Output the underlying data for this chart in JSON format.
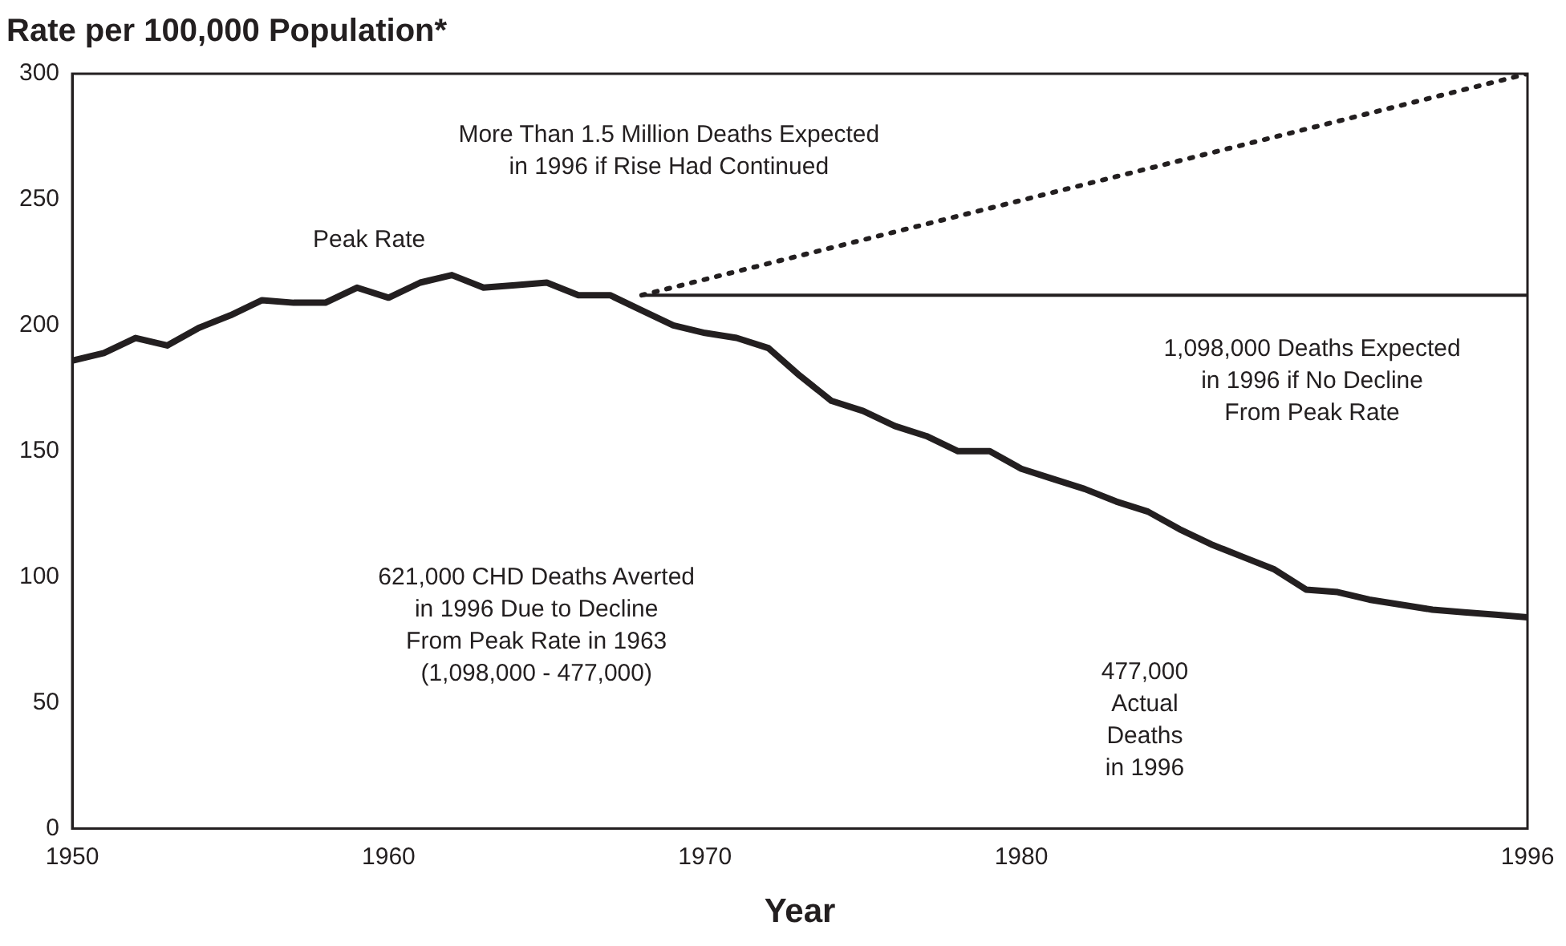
{
  "chart_data": {
    "type": "line",
    "title": "Rate per 100,000 Population*",
    "xlabel": "Year",
    "xlim": [
      1950,
      1996
    ],
    "xticks": [
      1950,
      1960,
      1970,
      1980,
      1996
    ],
    "ylim": [
      0,
      300
    ],
    "yticks": [
      0,
      50,
      100,
      150,
      200,
      250,
      300
    ],
    "grid": false,
    "legend": false,
    "marker": "none",
    "series": [
      {
        "color": "#231f20",
        "line_style": "solid",
        "x": [
          1950,
          1951,
          1952,
          1953,
          1954,
          1955,
          1956,
          1957,
          1958,
          1959,
          1960,
          1961,
          1962,
          1963,
          1964,
          1965,
          1966,
          1967,
          1968,
          1969,
          1970,
          1971,
          1972,
          1973,
          1974,
          1975,
          1976,
          1977,
          1978,
          1979,
          1980,
          1981,
          1982,
          1983,
          1984,
          1985,
          1986,
          1987,
          1988,
          1989,
          1990,
          1991,
          1992,
          1993,
          1994,
          1995,
          1996
        ],
        "values": [
          186,
          189,
          195,
          192,
          199,
          204,
          210,
          209,
          209,
          215,
          211,
          217,
          220,
          215,
          216,
          217,
          212,
          212,
          206,
          200,
          197,
          195,
          191,
          180,
          170,
          166,
          160,
          156,
          150,
          150,
          143,
          139,
          135,
          130,
          126,
          119,
          113,
          108,
          103,
          95,
          94,
          91,
          89,
          87,
          86,
          85,
          84
        ]
      },
      {
        "color": "#231f20",
        "line_style": "solid",
        "x": [
          1968,
          1996
        ],
        "values": [
          212,
          212
        ]
      },
      {
        "color": "#231f20",
        "line_style": "dotted",
        "x": [
          1968,
          1996
        ],
        "values": [
          212,
          300
        ]
      }
    ],
    "annotations": [
      "More Than 1.5 Million Deaths Expected\nin 1996 if Rise Had Continued",
      "Peak Rate",
      "1,098,000 Deaths Expected\nin 1996 if No Decline\nFrom Peak Rate",
      "621,000 CHD Deaths Averted\nin 1996 Due to Decline\nFrom Peak Rate in 1963\n(1,098,000 - 477,000)",
      "477,000\nActual\nDeaths\nin 1996"
    ]
  }
}
